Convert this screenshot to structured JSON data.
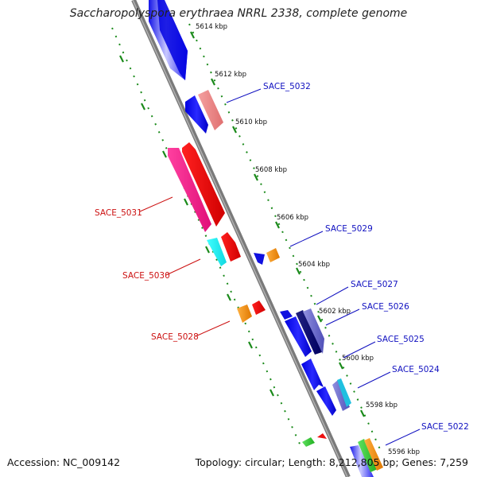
{
  "title": "Saccharopolyspora erythraea NRRL 2338, complete genome",
  "footer": {
    "accession": "Accession: NC_009142",
    "summary": "Topology: circular; Length: 8,212,805 bp; Genes: 7,259"
  },
  "colors": {
    "backbone": "#808080",
    "tick": "#1a8a1a",
    "forward_label": "#1010c0",
    "reverse_label": "#cc1010"
  },
  "ruler_labels": [
    "5614 kbp",
    "5612 kbp",
    "5610 kbp",
    "5608 kbp",
    "5606 kbp",
    "5604 kbp",
    "5602 kbp",
    "5600 kbp",
    "5598 kbp",
    "5596 kbp"
  ],
  "gene_labels": [
    {
      "name": "SACE_5032",
      "strand": "forward"
    },
    {
      "name": "SACE_5031",
      "strand": "reverse"
    },
    {
      "name": "SACE_5030",
      "strand": "reverse"
    },
    {
      "name": "SACE_5029",
      "strand": "forward"
    },
    {
      "name": "SACE_5028",
      "strand": "reverse"
    },
    {
      "name": "SACE_5027",
      "strand": "forward"
    },
    {
      "name": "SACE_5026",
      "strand": "forward"
    },
    {
      "name": "SACE_5025",
      "strand": "forward"
    },
    {
      "name": "SACE_5024",
      "strand": "forward"
    },
    {
      "name": "SACE_5022",
      "strand": "forward"
    }
  ]
}
